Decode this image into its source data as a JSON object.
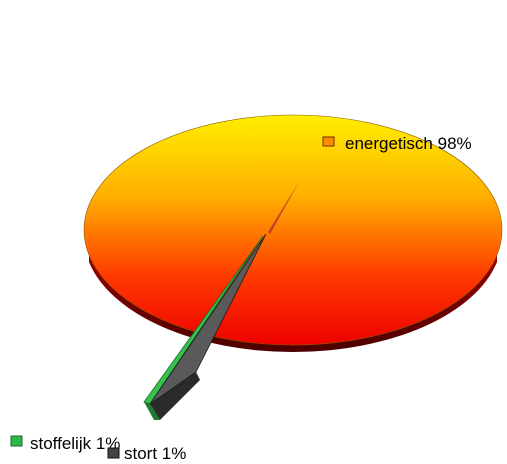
{
  "chart_data": {
    "type": "pie",
    "style": "3d-exploded",
    "title": "",
    "slices": [
      {
        "label": "energetisch",
        "value": 98,
        "display": "energetisch 98%",
        "color": "#ff8c00"
      },
      {
        "label": "stoffelijk",
        "value": 1,
        "display": "stoffelijk 1%",
        "color": "#2fb84a"
      },
      {
        "label": "stort",
        "value": 1,
        "display": "stort 1%",
        "color": "#555555"
      }
    ],
    "legend": "labels-near-slices"
  }
}
